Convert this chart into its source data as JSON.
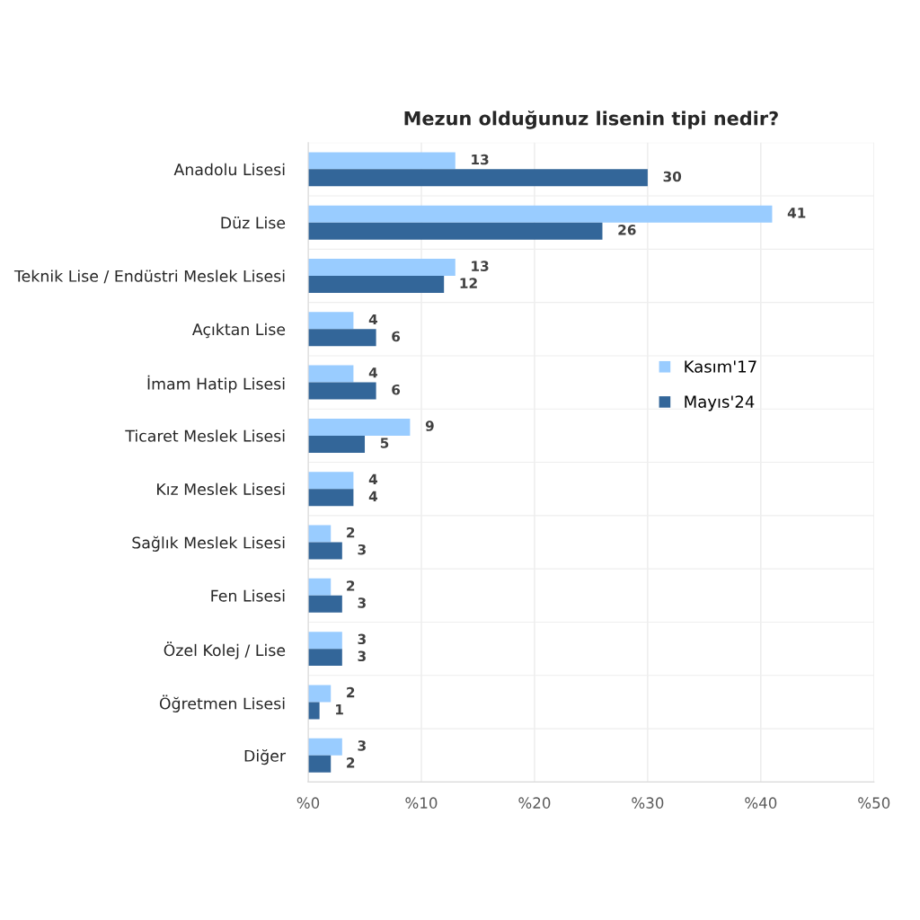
{
  "chart_data": {
    "type": "bar",
    "orientation": "horizontal",
    "title": "Mezun olduğunuz lisenin tipi nedir?",
    "categories": [
      "Anadolu Lisesi",
      "Düz Lise",
      "Teknik Lise / Endüstri Meslek Lisesi",
      "Açıktan Lise",
      "İmam Hatip Lisesi",
      "Ticaret Meslek Lisesi",
      "Kız Meslek Lisesi",
      "Sağlık Meslek Lisesi",
      "Fen Lisesi",
      "Özel Kolej / Lise",
      "Öğretmen Lisesi",
      "Diğer"
    ],
    "series": [
      {
        "name": "Kasım'17",
        "color": "#99ccff",
        "values": [
          13,
          41,
          13,
          4,
          4,
          9,
          4,
          2,
          2,
          3,
          2,
          3
        ]
      },
      {
        "name": "Mayıs'24",
        "color": "#336699",
        "values": [
          30,
          26,
          12,
          6,
          6,
          5,
          4,
          3,
          3,
          3,
          1,
          2
        ]
      }
    ],
    "xlim": [
      0,
      50
    ],
    "xticks": [
      {
        "value": 0,
        "label": "%0"
      },
      {
        "value": 10,
        "label": "%10"
      },
      {
        "value": 20,
        "label": "%20"
      },
      {
        "value": 30,
        "label": "%30"
      },
      {
        "value": 40,
        "label": "%40"
      },
      {
        "value": 50,
        "label": "%50"
      }
    ],
    "grid": true,
    "legend": "right",
    "data_labels": true
  }
}
